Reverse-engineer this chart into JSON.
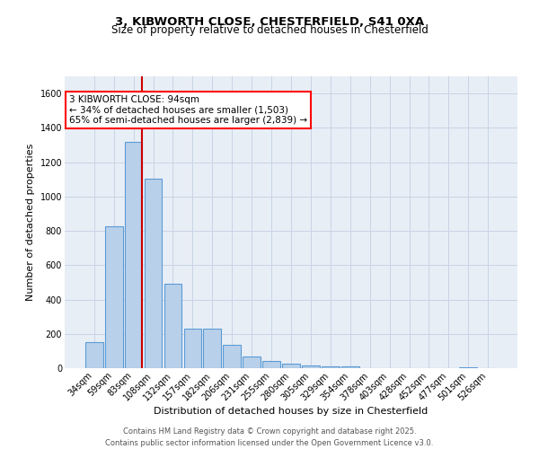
{
  "title_line1": "3, KIBWORTH CLOSE, CHESTERFIELD, S41 0XA",
  "title_line2": "Size of property relative to detached houses in Chesterfield",
  "xlabel": "Distribution of detached houses by size in Chesterfield",
  "ylabel": "Number of detached properties",
  "categories": [
    "34sqm",
    "59sqm",
    "83sqm",
    "108sqm",
    "132sqm",
    "157sqm",
    "182sqm",
    "206sqm",
    "231sqm",
    "255sqm",
    "280sqm",
    "305sqm",
    "329sqm",
    "354sqm",
    "378sqm",
    "403sqm",
    "428sqm",
    "452sqm",
    "477sqm",
    "501sqm",
    "526sqm"
  ],
  "values": [
    150,
    825,
    1320,
    1105,
    490,
    230,
    230,
    135,
    70,
    42,
    25,
    15,
    8,
    13,
    2,
    2,
    2,
    0,
    0,
    7,
    0
  ],
  "bar_color": "#b8d0ea",
  "bar_edge_color": "#5b9bd5",
  "grid_color": "#c8d4e4",
  "background_color": "#e8eef6",
  "annotation_line1": "3 KIBWORTH CLOSE: 94sqm",
  "annotation_line2": "← 34% of detached houses are smaller (1,503)",
  "annotation_line3": "65% of semi-detached houses are larger (2,839) →",
  "red_line_color": "#cc0000",
  "footer_line1": "Contains HM Land Registry data © Crown copyright and database right 2025.",
  "footer_line2": "Contains public sector information licensed under the Open Government Licence v3.0.",
  "ylim": [
    0,
    1700
  ],
  "yticks": [
    0,
    200,
    400,
    600,
    800,
    1000,
    1200,
    1400,
    1600
  ],
  "title1_fontsize": 9.5,
  "title2_fontsize": 8.5,
  "xlabel_fontsize": 8,
  "ylabel_fontsize": 8,
  "tick_fontsize": 7,
  "annot_fontsize": 7.5,
  "footer_fontsize": 6
}
